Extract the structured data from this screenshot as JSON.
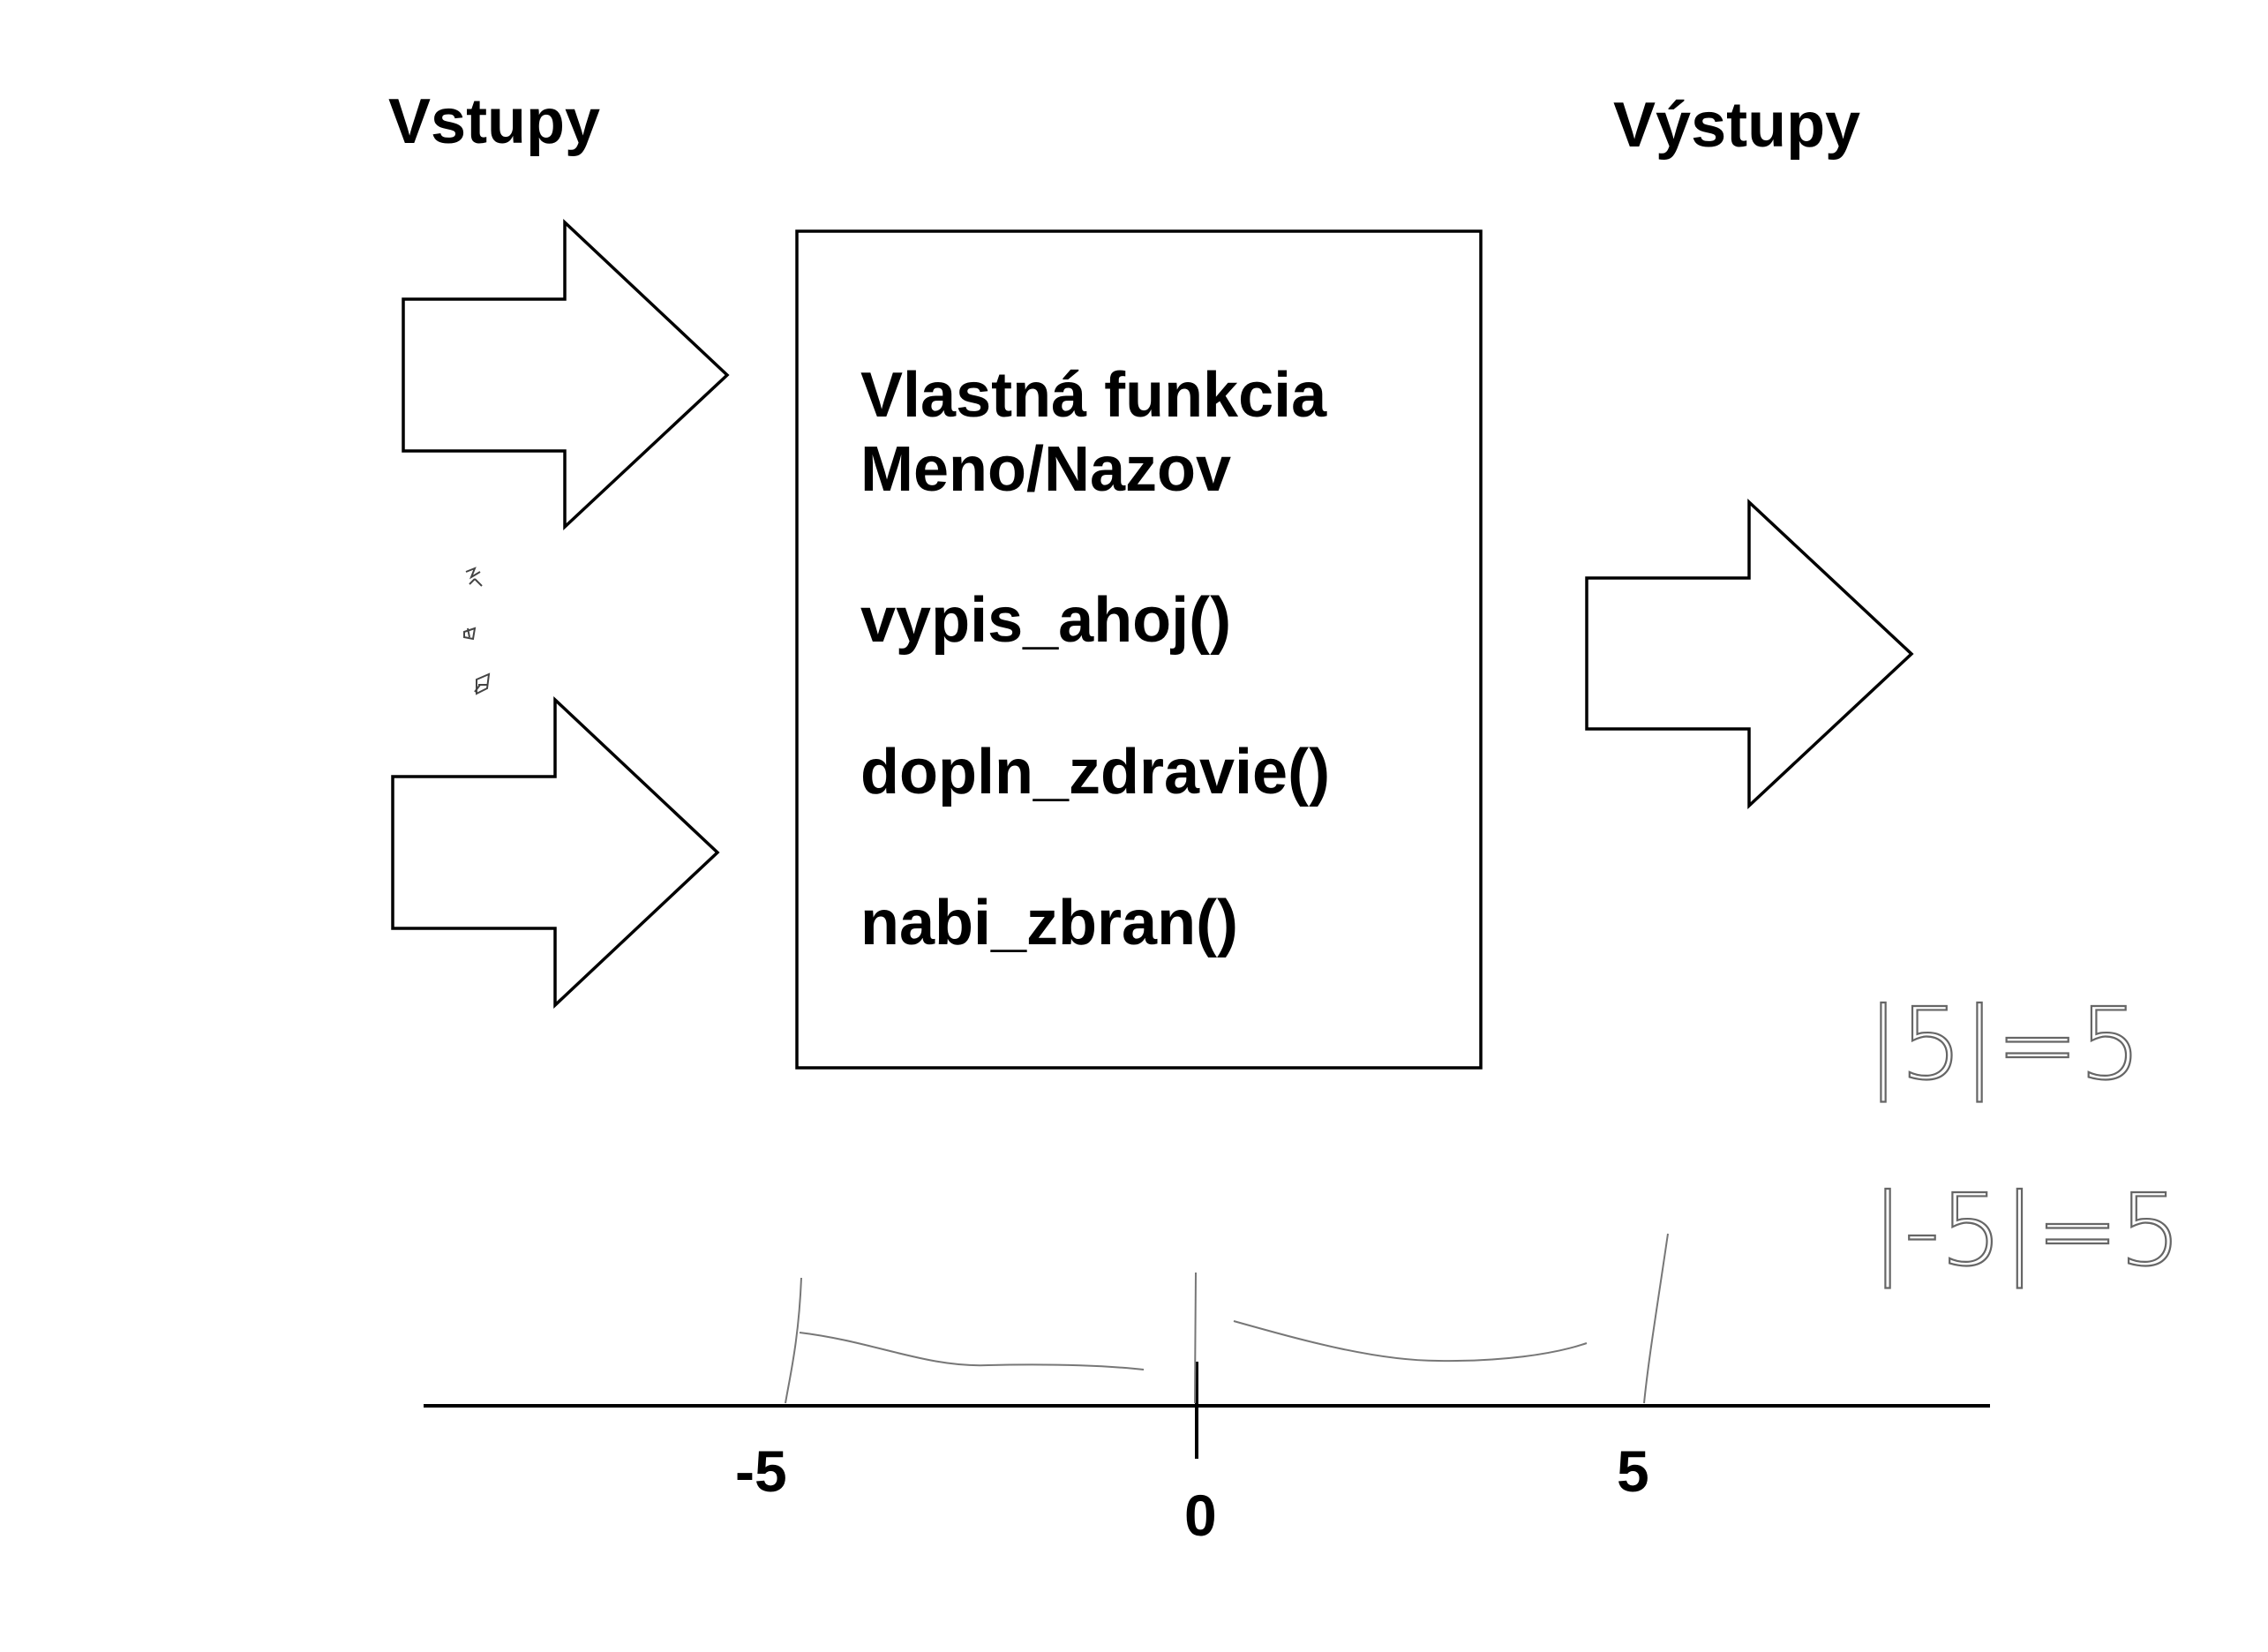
{
  "diagram": {
    "inputs_label": "Vstupy",
    "outputs_label": "Výstupy",
    "function_box": {
      "title_line1": "Vlastná funkcia",
      "title_line2": "Meno/Nazov",
      "functions": [
        "vypis_ahoj()",
        "dopln_zdravie()",
        "nabi_zbran()"
      ]
    },
    "number_line": {
      "ticks": [
        "-5",
        "0",
        "5"
      ]
    },
    "handwritten_notes": [
      "|5|=5",
      "|-5|=5"
    ]
  }
}
